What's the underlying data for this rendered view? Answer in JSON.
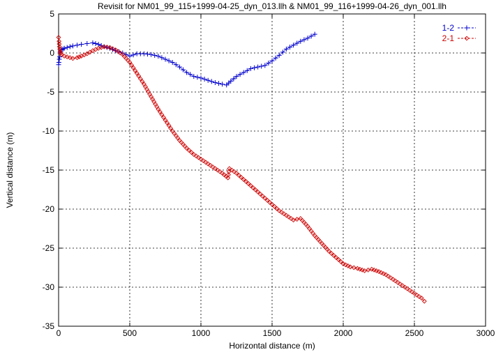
{
  "chart_data": {
    "type": "scatter",
    "title": "Revisit for NM01_99_115+1999-04-25_dyn_013.llh & NM01_99_116+1999-04-26_dyn_001.llh",
    "xlabel": "Horizontal distance (m)",
    "ylabel": "Vertical distance (m)",
    "xlim": [
      0,
      3000
    ],
    "ylim": [
      -35,
      5
    ],
    "xticks": [
      0,
      500,
      1000,
      1500,
      2000,
      2500,
      3000
    ],
    "yticks": [
      5,
      0,
      -5,
      -10,
      -15,
      -20,
      -25,
      -30,
      -35
    ],
    "grid": true,
    "legend_position": "top-right",
    "series": [
      {
        "name": "1-2",
        "color": "#0000cc",
        "marker": "plus",
        "line": "dashed",
        "x": [
          0,
          2,
          5,
          8,
          10,
          15,
          20,
          30,
          40,
          60,
          80,
          100,
          130,
          160,
          200,
          240,
          280,
          320,
          360,
          400,
          450,
          500,
          550,
          600,
          650,
          700,
          750,
          800,
          850,
          900,
          950,
          1000,
          1050,
          1100,
          1150,
          1180,
          1210,
          1250,
          1300,
          1350,
          1400,
          1450,
          1500,
          1550,
          1600,
          1650,
          1700,
          1750,
          1800
        ],
        "y": [
          -1.5,
          -1.2,
          -0.8,
          -0.5,
          0,
          0.2,
          0.4,
          0.5,
          0.6,
          0.7,
          0.8,
          0.9,
          1.0,
          1.1,
          1.2,
          1.3,
          1.1,
          0.8,
          0.6,
          0.3,
          0.0,
          -0.4,
          -0.1,
          -0.1,
          -0.2,
          -0.4,
          -0.8,
          -1.2,
          -1.8,
          -2.5,
          -3.0,
          -3.2,
          -3.5,
          -3.8,
          -4.0,
          -4.1,
          -3.6,
          -3.0,
          -2.5,
          -2.0,
          -1.8,
          -1.6,
          -1.0,
          -0.3,
          0.5,
          1.0,
          1.5,
          1.9,
          2.4
        ]
      },
      {
        "name": "2-1",
        "color": "#cc0000",
        "marker": "diamond",
        "line": "dashed",
        "x": [
          0,
          3,
          6,
          10,
          15,
          20,
          40,
          60,
          80,
          100,
          130,
          160,
          200,
          240,
          280,
          320,
          360,
          400,
          450,
          500,
          550,
          600,
          650,
          700,
          750,
          800,
          850,
          900,
          950,
          1000,
          1050,
          1100,
          1150,
          1190,
          1200,
          1250,
          1300,
          1350,
          1400,
          1450,
          1500,
          1550,
          1600,
          1650,
          1700,
          1750,
          1800,
          1850,
          1900,
          1950,
          2000,
          2050,
          2100,
          2150,
          2200,
          2250,
          2300,
          2350,
          2400,
          2450,
          2500,
          2550,
          2570
        ],
        "y": [
          2.0,
          1.5,
          0.8,
          0.2,
          0,
          -0.2,
          -0.4,
          -0.5,
          -0.6,
          -0.7,
          -0.6,
          -0.4,
          -0.1,
          0.3,
          0.6,
          0.8,
          0.7,
          0.4,
          -0.2,
          -1.2,
          -2.6,
          -4.0,
          -5.6,
          -7.2,
          -8.6,
          -10.0,
          -11.2,
          -12.2,
          -13.0,
          -13.6,
          -14.2,
          -14.8,
          -15.4,
          -16.0,
          -14.8,
          -15.4,
          -16.2,
          -17.0,
          -17.8,
          -18.6,
          -19.4,
          -20.2,
          -20.8,
          -21.4,
          -21.2,
          -22.2,
          -23.4,
          -24.4,
          -25.4,
          -26.2,
          -27.0,
          -27.4,
          -27.6,
          -27.9,
          -27.7,
          -28.0,
          -28.4,
          -29.0,
          -29.6,
          -30.2,
          -30.8,
          -31.4,
          -31.8
        ]
      }
    ]
  }
}
